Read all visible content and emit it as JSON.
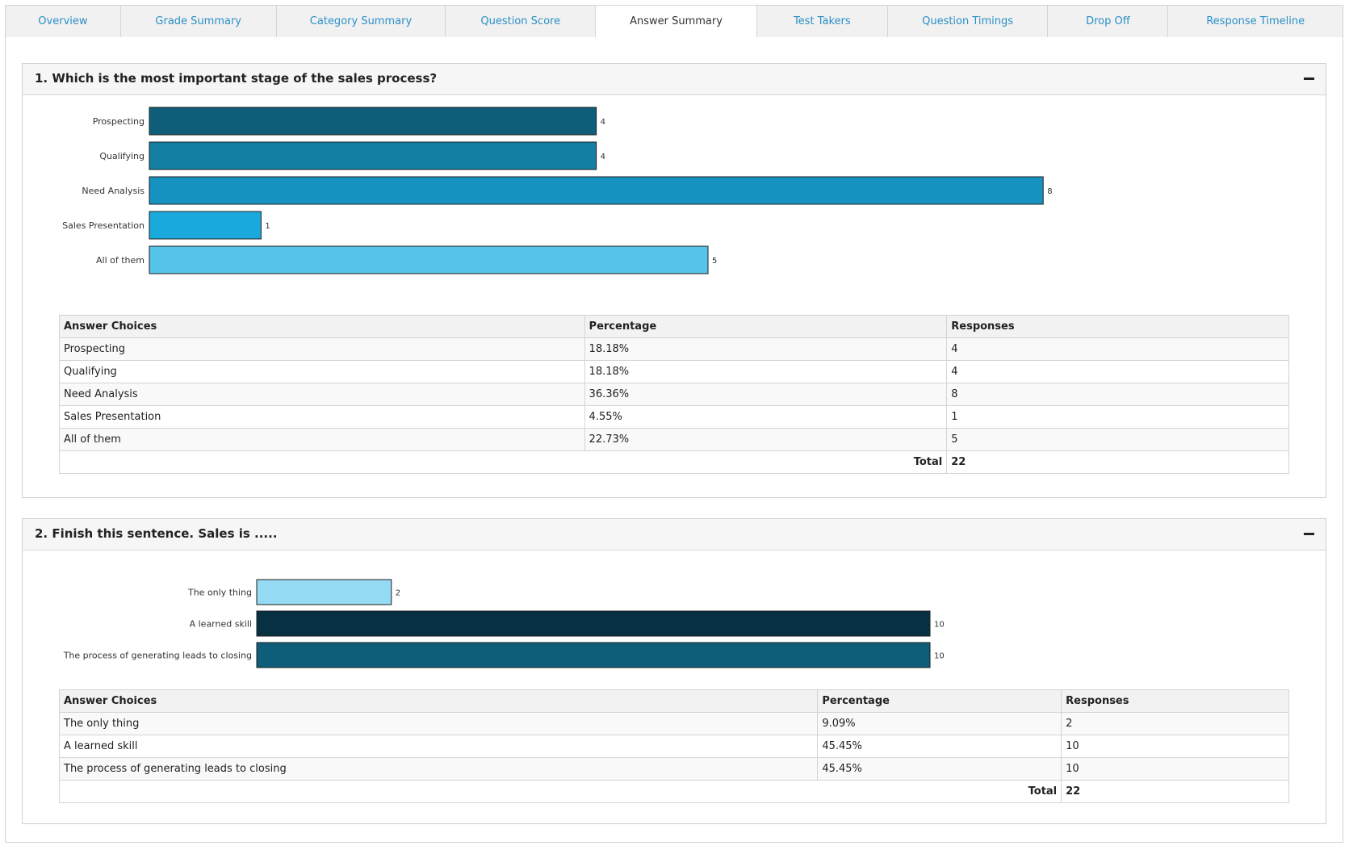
{
  "tabs": [
    {
      "label": "Overview",
      "active": false
    },
    {
      "label": "Grade Summary",
      "active": false
    },
    {
      "label": "Category Summary",
      "active": false
    },
    {
      "label": "Question Score",
      "active": false
    },
    {
      "label": "Answer Summary",
      "active": true
    },
    {
      "label": "Test Takers",
      "active": false
    },
    {
      "label": "Question Timings",
      "active": false
    },
    {
      "label": "Drop Off",
      "active": false
    },
    {
      "label": "Response Timeline",
      "active": false
    }
  ],
  "questions": [
    {
      "title": "1. Which is the most important stage of the sales process?",
      "headers": [
        "Answer Choices",
        "Percentage",
        "Responses"
      ],
      "rows": [
        {
          "choice": "Prospecting",
          "percentage": "18.18%",
          "responses": "4"
        },
        {
          "choice": "Qualifying",
          "percentage": "18.18%",
          "responses": "4"
        },
        {
          "choice": "Need Analysis",
          "percentage": "36.36%",
          "responses": "8"
        },
        {
          "choice": "Sales Presentation",
          "percentage": "4.55%",
          "responses": "1"
        },
        {
          "choice": "All of them",
          "percentage": "22.73%",
          "responses": "5"
        }
      ],
      "total_label": "Total",
      "total_value": "22"
    },
    {
      "title": "2. Finish this sentence. Sales is .....",
      "headers": [
        "Answer Choices",
        "Percentage",
        "Responses"
      ],
      "rows": [
        {
          "choice": "The only thing",
          "percentage": "9.09%",
          "responses": "2"
        },
        {
          "choice": "A learned skill",
          "percentage": "45.45%",
          "responses": "10"
        },
        {
          "choice": "The process of generating leads to closing",
          "percentage": "45.45%",
          "responses": "10"
        }
      ],
      "total_label": "Total",
      "total_value": "22"
    }
  ],
  "chart_data": [
    {
      "type": "bar",
      "orientation": "horizontal",
      "categories": [
        "Prospecting",
        "Qualifying",
        "Need Analysis",
        "Sales Presentation",
        "All of them"
      ],
      "values": [
        4,
        4,
        8,
        1,
        5
      ],
      "colors": [
        "#0e5e7a",
        "#127fa3",
        "#1592c0",
        "#1aa9dc",
        "#56c3e8"
      ]
    },
    {
      "type": "bar",
      "orientation": "horizontal",
      "categories": [
        "The only thing",
        "A learned skill",
        "The process of generating leads to closing"
      ],
      "values": [
        2,
        10,
        10
      ],
      "colors": [
        "#95dbf3",
        "#073043",
        "#0e5e7a"
      ]
    }
  ]
}
